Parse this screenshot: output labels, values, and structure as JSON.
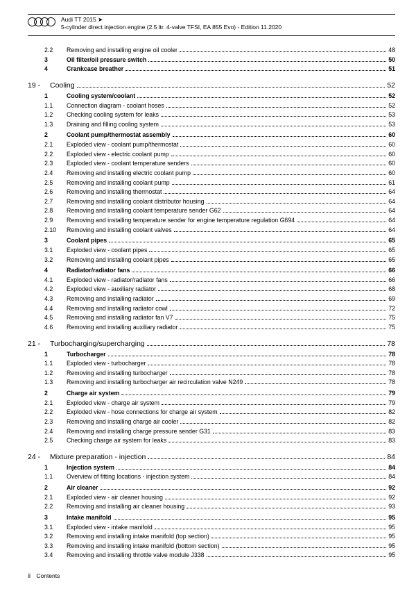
{
  "header": {
    "model": "Audi TT 2015 ➤",
    "subtitle": "5-cylinder direct injection engine (2.5 ltr. 4-valve TFSI, EA 855 Evo) - Edition 11.2020"
  },
  "pre": [
    {
      "n": "2.2",
      "t": "Removing and installing engine oil cooler",
      "p": "48"
    },
    {
      "n": "3",
      "t": "Oil filter/oil pressure switch",
      "p": "50",
      "b": true
    },
    {
      "n": "4",
      "t": "Crankcase breather",
      "p": "51",
      "b": true
    }
  ],
  "chapters": [
    {
      "num": "19 -",
      "title": "Cooling",
      "page": "52",
      "rows": [
        {
          "n": "1",
          "t": "Cooling system/coolant",
          "p": "52",
          "b": true
        },
        {
          "n": "1.1",
          "t": "Connection diagram - coolant hoses",
          "p": "52"
        },
        {
          "n": "1.2",
          "t": "Checking cooling system for leaks",
          "p": "53"
        },
        {
          "n": "1.3",
          "t": "Draining and filling cooling system",
          "p": "53"
        },
        {
          "n": "2",
          "t": "Coolant pump/thermostat assembly",
          "p": "60",
          "b": true,
          "gap": true
        },
        {
          "n": "2.1",
          "t": "Exploded view - coolant pump/thermostat",
          "p": "60"
        },
        {
          "n": "2.2",
          "t": "Exploded view - electric coolant pump",
          "p": "60"
        },
        {
          "n": "2.3",
          "t": "Exploded view - coolant temperature senders",
          "p": "60"
        },
        {
          "n": "2.4",
          "t": "Removing and installing electric coolant pump",
          "p": "60"
        },
        {
          "n": "2.5",
          "t": "Removing and installing coolant pump",
          "p": "61"
        },
        {
          "n": "2.6",
          "t": "Removing and installing thermostat",
          "p": "64"
        },
        {
          "n": "2.7",
          "t": "Removing and installing coolant distributor housing",
          "p": "64"
        },
        {
          "n": "2.8",
          "t": "Removing and installing coolant temperature sender G62",
          "p": "64"
        },
        {
          "n": "2.9",
          "t": "Removing and installing temperature sender for engine temperature regulation G694",
          "p": "64"
        },
        {
          "n": "2.10",
          "t": "Removing and installing coolant valves",
          "p": "64"
        },
        {
          "n": "3",
          "t": "Coolant pipes",
          "p": "65",
          "b": true,
          "gap": true
        },
        {
          "n": "3.1",
          "t": "Exploded view - coolant pipes",
          "p": "65"
        },
        {
          "n": "3.2",
          "t": "Removing and installing coolant pipes",
          "p": "65"
        },
        {
          "n": "4",
          "t": "Radiator/radiator fans",
          "p": "66",
          "b": true,
          "gap": true
        },
        {
          "n": "4.1",
          "t": "Exploded view - radiator/radiator fans",
          "p": "66"
        },
        {
          "n": "4.2",
          "t": "Exploded view - auxiliary radiator",
          "p": "68"
        },
        {
          "n": "4.3",
          "t": "Removing and installing radiator",
          "p": "69"
        },
        {
          "n": "4.4",
          "t": "Removing and installing radiator cowl",
          "p": "72"
        },
        {
          "n": "4.5",
          "t": "Removing and installing radiator fan V7",
          "p": "75"
        },
        {
          "n": "4.6",
          "t": "Removing and installing auxiliary radiator",
          "p": "75"
        }
      ]
    },
    {
      "num": "21 -",
      "title": "Turbocharging/supercharging",
      "page": "78",
      "rows": [
        {
          "n": "1",
          "t": "Turbocharger",
          "p": "78",
          "b": true
        },
        {
          "n": "1.1",
          "t": "Exploded view - turbocharger",
          "p": "78"
        },
        {
          "n": "1.2",
          "t": "Removing and installing turbocharger",
          "p": "78"
        },
        {
          "n": "1.3",
          "t": "Removing and installing turbocharger air recirculation valve N249",
          "p": "78"
        },
        {
          "n": "2",
          "t": "Charge air system",
          "p": "79",
          "b": true,
          "gap": true
        },
        {
          "n": "2.1",
          "t": "Exploded view - charge air system",
          "p": "79"
        },
        {
          "n": "2.2",
          "t": "Exploded view - hose connections for charge air system",
          "p": "82"
        },
        {
          "n": "2.3",
          "t": "Removing and installing charge air cooler",
          "p": "82"
        },
        {
          "n": "2.4",
          "t": "Removing and installing charge pressure sender G31",
          "p": "83"
        },
        {
          "n": "2.5",
          "t": "Checking charge air system for leaks",
          "p": "83"
        }
      ]
    },
    {
      "num": "24 -",
      "title": "Mixture preparation - injection",
      "page": "84",
      "rows": [
        {
          "n": "1",
          "t": "Injection system",
          "p": "84",
          "b": true
        },
        {
          "n": "1.1",
          "t": "Overview of fitting locations - injection system",
          "p": "84"
        },
        {
          "n": "2",
          "t": "Air cleaner",
          "p": "92",
          "b": true,
          "gap": true
        },
        {
          "n": "2.1",
          "t": "Exploded view - air cleaner housing",
          "p": "92"
        },
        {
          "n": "2.2",
          "t": "Removing and installing air cleaner housing",
          "p": "93"
        },
        {
          "n": "3",
          "t": "Intake manifold",
          "p": "95",
          "b": true,
          "gap": true
        },
        {
          "n": "3.1",
          "t": "Exploded view - intake manifold",
          "p": "95"
        },
        {
          "n": "3.2",
          "t": "Removing and installing intake manifold (top section)",
          "p": "95"
        },
        {
          "n": "3.3",
          "t": "Removing and installing intake manifold (bottom section)",
          "p": "95"
        },
        {
          "n": "3.4",
          "t": "Removing and installing throttle valve module J338",
          "p": "95"
        }
      ]
    }
  ],
  "footer": {
    "page": "ii",
    "label": "Contents"
  }
}
